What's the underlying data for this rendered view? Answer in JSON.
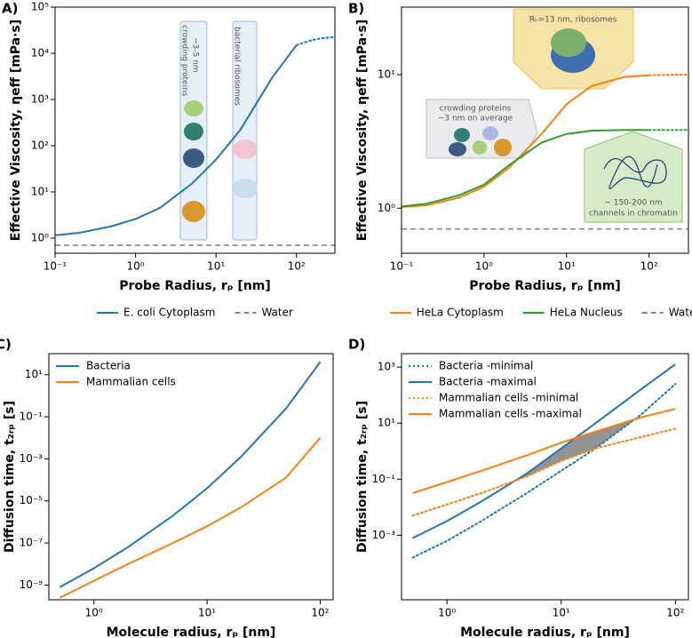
{
  "chart_data": [
    {
      "type": "line",
      "panel_label": "A)",
      "xlabel": "Probe Radius, rₚ [nm]",
      "ylabel": "Effective Viscosity, ηeff [mPa·s]",
      "xscale": "log",
      "yscale": "log",
      "xlim": [
        0.1,
        300
      ],
      "ylim": [
        0.47,
        100000
      ],
      "xticks": [
        {
          "value": 0.1,
          "label": "10⁻¹"
        },
        {
          "value": 1,
          "label": "10⁰"
        },
        {
          "value": 10,
          "label": "10¹"
        },
        {
          "value": 100,
          "label": "10²"
        }
      ],
      "yticks": [
        {
          "value": 1,
          "label": "10⁰"
        },
        {
          "value": 10,
          "label": "10¹"
        },
        {
          "value": 100,
          "label": "10²"
        },
        {
          "value": 1000,
          "label": "10³"
        },
        {
          "value": 10000,
          "label": "10⁴"
        },
        {
          "value": 100000,
          "label": "10⁵"
        }
      ],
      "legend": "below",
      "series": [
        {
          "name": "E. coli Cytoplasm",
          "color": "#1f77b4",
          "style": "solid",
          "x": [
            0.1,
            0.2,
            0.5,
            1,
            2,
            5,
            10,
            20,
            50,
            100
          ],
          "values": [
            1.15,
            1.3,
            1.8,
            2.6,
            4.5,
            15,
            50,
            220,
            3000,
            15000
          ]
        },
        {
          "color": "#1f77b4",
          "style": "dotted",
          "x": [
            100,
            150,
            200,
            300
          ],
          "values": [
            15000,
            19000,
            21000,
            22500
          ]
        },
        {
          "name": "Water",
          "color": "#808080",
          "style": "dashed",
          "x": [
            0.1,
            300
          ],
          "values": [
            0.7,
            0.7
          ]
        }
      ],
      "annotations": [
        [
          "crowding proteins",
          "~3-5 nm"
        ],
        [
          "bacterial ribosomes"
        ]
      ]
    },
    {
      "type": "line",
      "panel_label": "B)",
      "xlabel": "Probe Radius, rₚ [nm]",
      "ylabel": "Effective Viscosity, ηeff [mPa·s]",
      "xscale": "log",
      "yscale": "log",
      "xlim": [
        0.1,
        300
      ],
      "ylim": [
        0.46,
        32
      ],
      "xticks": [
        {
          "value": 0.1,
          "label": "10⁻¹"
        },
        {
          "value": 1,
          "label": "10⁰"
        },
        {
          "value": 10,
          "label": "10¹"
        },
        {
          "value": 100,
          "label": "10²"
        }
      ],
      "yticks": [
        {
          "value": 1,
          "label": "10⁰"
        },
        {
          "value": 10,
          "label": "10¹"
        }
      ],
      "legend": "below",
      "series": [
        {
          "name": "HeLa Cytoplasm",
          "color": "#ff7f0e",
          "style": "solid",
          "x": [
            0.1,
            0.2,
            0.5,
            1,
            2,
            5,
            10,
            20,
            50,
            100
          ],
          "values": [
            1.02,
            1.05,
            1.2,
            1.45,
            2.0,
            3.6,
            6.0,
            8.2,
            9.6,
            9.9
          ]
        },
        {
          "color": "#ff7f0e",
          "style": "dotted",
          "x": [
            100,
            300
          ],
          "values": [
            9.9,
            10
          ]
        },
        {
          "name": "HeLa Nucleus",
          "color": "#2ca02c",
          "style": "solid",
          "x": [
            0.1,
            0.2,
            0.5,
            1,
            2,
            5,
            10,
            20,
            50,
            100
          ],
          "values": [
            1.03,
            1.08,
            1.25,
            1.5,
            2.1,
            3.1,
            3.6,
            3.8,
            3.85,
            3.85
          ]
        },
        {
          "color": "#2ca02c",
          "style": "dotted",
          "x": [
            100,
            300
          ],
          "values": [
            3.85,
            3.85
          ]
        },
        {
          "name": "Water",
          "color": "#808080",
          "style": "dashed",
          "x": [
            0.1,
            300
          ],
          "values": [
            0.7,
            0.7
          ]
        }
      ],
      "annotations": [
        [
          "Rₕ=13 nm, ribosomes"
        ],
        [
          "crowding proteins",
          "~3 nm on average"
        ],
        [
          "~ 150-200 nm",
          "channels in chromatin"
        ]
      ]
    },
    {
      "type": "line",
      "panel_label": "C)",
      "xlabel": "Molecule radius, rₚ [nm]",
      "ylabel": "Diffusion time, t₂ᵣₚ [s]",
      "xscale": "log",
      "yscale": "log",
      "xlim": [
        0.4,
        130
      ],
      "ylim": [
        2e-10,
        100
      ],
      "xticks": [
        {
          "value": 1,
          "label": "10⁰"
        },
        {
          "value": 10,
          "label": "10¹"
        },
        {
          "value": 100,
          "label": "10²"
        }
      ],
      "yticks": [
        {
          "value": 1e-09,
          "label": "10⁻⁹"
        },
        {
          "value": 1e-07,
          "label": "10⁻⁷"
        },
        {
          "value": 1e-05,
          "label": "10⁻⁵"
        },
        {
          "value": 0.001,
          "label": "10⁻³"
        },
        {
          "value": 0.1,
          "label": "10⁻¹"
        },
        {
          "value": 10,
          "label": "10¹"
        }
      ],
      "legend": "upper left",
      "series": [
        {
          "name": "Bacteria",
          "color": "#1f77b4",
          "style": "solid",
          "x": [
            0.5,
            1,
            2,
            5,
            10,
            20,
            50,
            100
          ],
          "values": [
            8e-10,
            6.3e-09,
            6.3e-08,
            2e-06,
            4e-05,
            0.00126,
            0.25,
            40
          ]
        },
        {
          "name": "Mammalian cells",
          "color": "#ff7f0e",
          "style": "solid",
          "x": [
            0.5,
            1,
            2,
            5,
            10,
            20,
            50,
            100
          ],
          "values": [
            2.5e-10,
            1.6e-09,
            1e-08,
            1e-07,
            6.3e-07,
            5e-06,
            0.00013,
            0.01
          ]
        }
      ]
    },
    {
      "type": "line",
      "panel_label": "D)",
      "xlabel": "Molecule radius, rₚ [nm]",
      "ylabel": "Diffusion time, t₂ᵣₚ [s]",
      "xscale": "log",
      "yscale": "log",
      "xlim": [
        0.4,
        130
      ],
      "ylim": [
        5e-06,
        3000
      ],
      "xticks": [
        {
          "value": 1,
          "label": "10⁰"
        },
        {
          "value": 10,
          "label": "10¹"
        },
        {
          "value": 100,
          "label": "10²"
        }
      ],
      "yticks": [
        {
          "value": 0.001,
          "label": "10⁻³"
        },
        {
          "value": 0.1,
          "label": "10⁻¹"
        },
        {
          "value": 10,
          "label": "10¹"
        },
        {
          "value": 1000,
          "label": "10³"
        }
      ],
      "legend": "upper left",
      "overlap_shading": true,
      "shade_color": "#808080",
      "series": [
        {
          "name": "Bacteria -minimal",
          "color": "#1f77b4",
          "style": "dotted",
          "x": [
            0.5,
            1,
            2,
            5,
            10,
            20,
            50,
            100
          ],
          "values": [
            0.00016,
            0.00063,
            0.0032,
            0.032,
            0.2,
            1.26,
            20,
            250
          ]
        },
        {
          "name": "Bacteria -maximal",
          "color": "#1f77b4",
          "style": "solid",
          "x": [
            0.5,
            1,
            2,
            5,
            10,
            20,
            50,
            100
          ],
          "values": [
            0.00079,
            0.0032,
            0.016,
            0.16,
            1.26,
            10,
            160,
            1260
          ]
        },
        {
          "name": "Mammalian cells -minimal",
          "color": "#ff7f0e",
          "style": "dotted",
          "x": [
            0.5,
            1,
            2,
            5,
            10,
            20,
            50,
            100
          ],
          "values": [
            0.005,
            0.0126,
            0.032,
            0.126,
            0.45,
            1.26,
            3.2,
            6.3
          ]
        },
        {
          "name": "Mammalian cells -maximal",
          "color": "#ff7f0e",
          "style": "solid",
          "x": [
            0.5,
            1,
            2,
            5,
            10,
            20,
            50,
            100
          ],
          "values": [
            0.032,
            0.079,
            0.2,
            0.71,
            2,
            5,
            16,
            32
          ]
        }
      ]
    }
  ]
}
